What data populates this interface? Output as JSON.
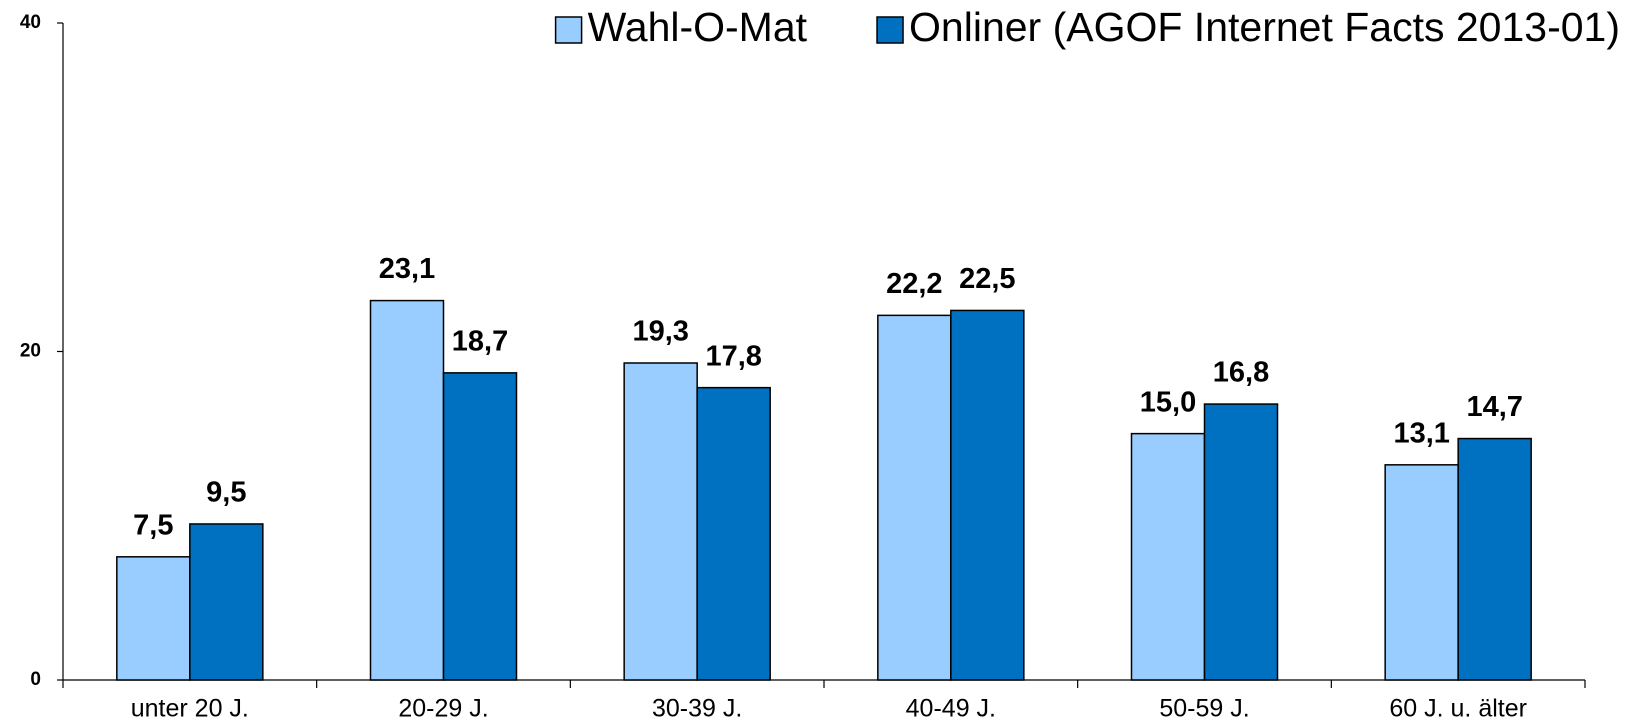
{
  "chart_data": {
    "type": "bar",
    "categories": [
      "unter 20 J.",
      "20-29 J.",
      "30-39 J.",
      "40-49 J.",
      "50-59 J.",
      "60 J. u. älter"
    ],
    "series": [
      {
        "name": "Wahl-O-Mat",
        "color": "#99ccff",
        "values": [
          7.5,
          23.1,
          19.3,
          22.2,
          15.0,
          13.1
        ],
        "value_labels": [
          "7,5",
          "23,1",
          "19,3",
          "22,2",
          "15,0",
          "13,1"
        ]
      },
      {
        "name": "Onliner (AGOF Internet Facts 2013-01)",
        "color": "#0070c0",
        "values": [
          9.5,
          18.7,
          17.8,
          22.5,
          16.8,
          14.7
        ],
        "value_labels": [
          "9,5",
          "18,7",
          "17,8",
          "22,5",
          "16,8",
          "14,7"
        ]
      }
    ],
    "ylim": [
      0,
      40
    ],
    "yticks": [
      0,
      20,
      40
    ],
    "grid": false,
    "legend": "top-right"
  }
}
